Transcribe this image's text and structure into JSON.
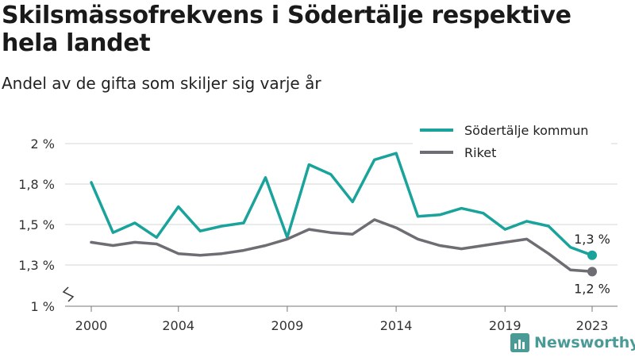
{
  "header": {
    "title": "Skilsmässofrekvens i Södertälje respektive hela landet",
    "subtitle": "Andel av de gifta som skiljer sig varje år"
  },
  "brand": {
    "name": "Newsworthy"
  },
  "chart_data": {
    "type": "line",
    "x": [
      2000,
      2001,
      2002,
      2003,
      2004,
      2005,
      2006,
      2007,
      2008,
      2009,
      2010,
      2011,
      2012,
      2013,
      2014,
      2015,
      2016,
      2017,
      2018,
      2019,
      2020,
      2021,
      2022,
      2023
    ],
    "x_ticks": [
      "2000",
      "2004",
      "2009",
      "2014",
      "2019",
      "2023"
    ],
    "y_ticks": [
      "1 %",
      "1,3 %",
      "1,5 %",
      "1,8 %",
      "2 %"
    ],
    "ylim": [
      1.0,
      2.0
    ],
    "grid": true,
    "legend_position": "top-right",
    "series": [
      {
        "name": "Södertälje kommun",
        "color": "#1aa39a",
        "values": [
          1.76,
          1.45,
          1.51,
          1.42,
          1.61,
          1.46,
          1.49,
          1.51,
          1.79,
          1.42,
          1.87,
          1.81,
          1.64,
          1.9,
          1.94,
          1.55,
          1.56,
          1.6,
          1.57,
          1.47,
          1.52,
          1.49,
          1.36,
          1.31
        ]
      },
      {
        "name": "Riket",
        "color": "#6d6d73",
        "values": [
          1.39,
          1.37,
          1.39,
          1.38,
          1.32,
          1.31,
          1.32,
          1.34,
          1.37,
          1.41,
          1.47,
          1.45,
          1.44,
          1.53,
          1.48,
          1.41,
          1.37,
          1.35,
          1.37,
          1.39,
          1.41,
          1.32,
          1.22,
          1.21
        ]
      }
    ],
    "end_labels": [
      "1,3 %",
      "1,2 %"
    ]
  }
}
